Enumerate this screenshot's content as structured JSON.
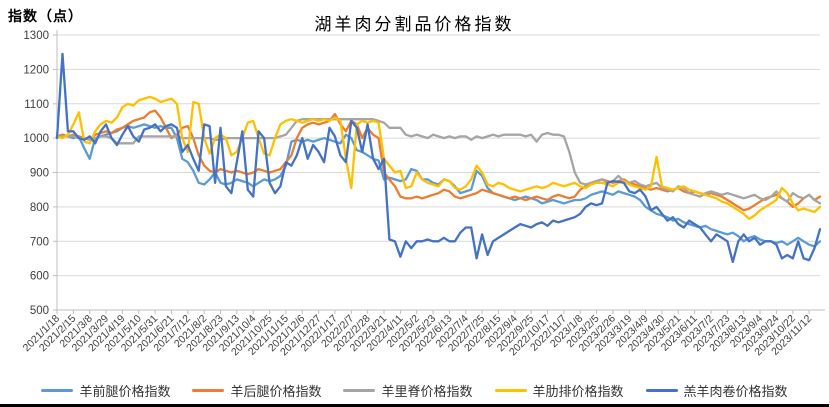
{
  "chart_data": {
    "type": "line",
    "title": "湖羊肉分割品价格指数",
    "ylabel": "指数（点）",
    "xlabel": "",
    "ylim": [
      500,
      1300
    ],
    "y_ticks": [
      500,
      600,
      700,
      800,
      900,
      1000,
      1100,
      1200,
      1300
    ],
    "grid": "horizontal",
    "legend_position": "bottom",
    "tick_every": 3,
    "x_tick_labels": [
      "2021/1/18",
      "2021/2/15",
      "2021/3/8",
      "2021/3/29",
      "2021/4/19",
      "2021/5/10",
      "2021/5/31",
      "2021/6/21",
      "2021/7/12",
      "2021/8/2",
      "2021/8/23",
      "2021/9/13",
      "2021/10/4",
      "2021/10/25",
      "2021/11/15",
      "2021/12/6",
      "2021/12/27",
      "2022/1/17",
      "2022/2/7",
      "2022/2/28",
      "2022/3/21",
      "2022/4/11",
      "2022/5/2",
      "2022/5/23",
      "2022/6/13",
      "2022/7/4",
      "2022/7/25",
      "2022/8/15",
      "2022/9/4",
      "2022/9/25",
      "2022/10/17",
      "2022/11/7",
      "2023/1/8",
      "2023/2/5",
      "2023/2/26",
      "2023/3/19",
      "2023/4/9",
      "2023/4/30",
      "2023/5/21",
      "2023/6/11",
      "2023/7/2",
      "2023/7/23",
      "2023/8/13",
      "2023/9/4",
      "2023/9/24",
      "2023/10/22",
      "2023/11/12"
    ],
    "series": [
      {
        "name": "羊前腿价格指数",
        "color": "#5B9BD5",
        "values": [
          1005,
          1010,
          1005,
          1000,
          1005,
          970,
          940,
          1000,
          1005,
          1010,
          1015,
          1020,
          1030,
          1035,
          1030,
          1035,
          1040,
          1035,
          1030,
          1035,
          1030,
          1030,
          1000,
          940,
          930,
          905,
          870,
          865,
          880,
          900,
          870,
          865,
          870,
          880,
          875,
          870,
          860,
          870,
          880,
          875,
          880,
          890,
          920,
          990,
          995,
          990,
          995,
          990,
          995,
          1000,
          995,
          990,
          985,
          1010,
          1000,
          965,
          960,
          950,
          940,
          935,
          880,
          885,
          880,
          875,
          880,
          910,
          905,
          880,
          880,
          870,
          865,
          880,
          875,
          860,
          840,
          845,
          850,
          905,
          890,
          855,
          840,
          835,
          830,
          825,
          820,
          825,
          830,
          825,
          820,
          810,
          815,
          820,
          815,
          810,
          815,
          820,
          820,
          825,
          835,
          840,
          845,
          840,
          835,
          845,
          840,
          835,
          830,
          820,
          800,
          790,
          780,
          775,
          770,
          760,
          765,
          755,
          750,
          745,
          740,
          745,
          735,
          730,
          725,
          720,
          725,
          715,
          700,
          710,
          715,
          705,
          700,
          700,
          695,
          700,
          690,
          700,
          710,
          700,
          690,
          685,
          700
        ]
      },
      {
        "name": "羊后腿价格指数",
        "color": "#ED7D31",
        "values": [
          1005,
          1010,
          1005,
          1010,
          1005,
          1000,
          995,
          1010,
          1015,
          1020,
          1015,
          1025,
          1030,
          1040,
          1050,
          1055,
          1060,
          1075,
          1080,
          1060,
          1030,
          1000,
          1010,
          1030,
          1035,
          1000,
          950,
          920,
          905,
          900,
          910,
          905,
          900,
          905,
          900,
          895,
          900,
          910,
          905,
          900,
          905,
          910,
          930,
          950,
          1000,
          1030,
          1040,
          1045,
          1040,
          1045,
          1050,
          1070,
          1040,
          1020,
          1050,
          1040,
          1000,
          1030,
          1010,
          1000,
          900,
          880,
          860,
          830,
          825,
          825,
          830,
          825,
          830,
          835,
          840,
          850,
          845,
          830,
          825,
          830,
          835,
          840,
          850,
          845,
          840,
          835,
          830,
          825,
          830,
          825,
          820,
          825,
          830,
          825,
          820,
          830,
          835,
          830,
          825,
          830,
          850,
          860,
          870,
          875,
          880,
          875,
          870,
          875,
          880,
          870,
          865,
          860,
          855,
          850,
          855,
          850,
          845,
          850,
          855,
          845,
          840,
          845,
          840,
          835,
          840,
          835,
          830,
          820,
          810,
          800,
          790,
          795,
          805,
          815,
          825,
          830,
          835,
          825,
          815,
          800,
          810,
          825,
          835,
          820,
          830
        ]
      },
      {
        "name": "羊里脊价格指数",
        "color": "#A5A5A5",
        "values": [
          1005,
          1005,
          1005,
          1005,
          1000,
          1000,
          995,
          1000,
          1005,
          1005,
          1000,
          985,
          985,
          985,
          985,
          1005,
          1005,
          1005,
          1005,
          1005,
          1005,
          1005,
          1005,
          1000,
          1000,
          1000,
          1000,
          1000,
          1000,
          995,
          995,
          1000,
          1000,
          1000,
          1000,
          1000,
          1000,
          1000,
          1000,
          1000,
          1000,
          1005,
          1010,
          1030,
          1050,
          1055,
          1055,
          1055,
          1055,
          1055,
          1055,
          1055,
          1055,
          1055,
          1055,
          1055,
          1055,
          1055,
          1055,
          1050,
          1045,
          1030,
          1030,
          1030,
          1010,
          1005,
          1010,
          1005,
          1000,
          1010,
          1005,
          1000,
          1005,
          1000,
          1005,
          1005,
          995,
          1005,
          1000,
          1005,
          1010,
          1005,
          1010,
          1010,
          1010,
          1010,
          1005,
          1010,
          990,
          1010,
          1015,
          1010,
          1010,
          1005,
          960,
          900,
          870,
          865,
          870,
          875,
          880,
          870,
          875,
          890,
          875,
          870,
          875,
          865,
          860,
          865,
          870,
          855,
          850,
          845,
          860,
          855,
          840,
          835,
          830,
          840,
          845,
          840,
          835,
          840,
          835,
          830,
          825,
          830,
          835,
          825,
          820,
          830,
          845,
          825,
          815,
          840,
          830,
          825,
          835,
          820,
          810
        ]
      },
      {
        "name": "羊肋排价格指数",
        "color": "#FFC000",
        "values": [
          1005,
          1000,
          1010,
          1040,
          1075,
          990,
          985,
          1020,
          1040,
          1050,
          1045,
          1060,
          1090,
          1100,
          1095,
          1110,
          1115,
          1120,
          1115,
          1105,
          1110,
          1115,
          1100,
          1000,
          960,
          1105,
          1100,
          1000,
          955,
          1000,
          1010,
          1000,
          950,
          960,
          1000,
          1045,
          1050,
          1000,
          955,
          950,
          1000,
          1040,
          1050,
          1055,
          1050,
          1045,
          1050,
          1055,
          1050,
          1055,
          1050,
          1060,
          1050,
          940,
          855,
          1040,
          1050,
          1045,
          1050,
          1045,
          940,
          920,
          900,
          905,
          855,
          860,
          900,
          880,
          870,
          865,
          860,
          880,
          875,
          855,
          850,
          860,
          880,
          920,
          900,
          865,
          860,
          870,
          865,
          855,
          850,
          845,
          850,
          855,
          860,
          855,
          860,
          870,
          865,
          860,
          865,
          870,
          860,
          855,
          865,
          870,
          870,
          865,
          860,
          870,
          875,
          865,
          860,
          855,
          850,
          860,
          945,
          860,
          855,
          850,
          855,
          860,
          850,
          845,
          840,
          835,
          830,
          825,
          815,
          810,
          800,
          790,
          780,
          765,
          775,
          790,
          800,
          810,
          820,
          855,
          840,
          810,
          790,
          795,
          790,
          785,
          800
        ]
      },
      {
        "name": "羔羊肉卷价格指数",
        "color": "#4472C4",
        "values": [
          1000,
          1245,
          1020,
          1020,
          1000,
          995,
          1005,
          985,
          1020,
          1040,
          1000,
          980,
          1010,
          1035,
          1005,
          990,
          1025,
          1030,
          1040,
          1020,
          1035,
          1040,
          1030,
          960,
          980,
          940,
          905,
          1040,
          1035,
          870,
          1030,
          860,
          840,
          930,
          1020,
          850,
          830,
          1020,
          1000,
          870,
          840,
          860,
          930,
          920,
          950,
          1000,
          940,
          980,
          960,
          930,
          1030,
          1005,
          950,
          930,
          1050,
          1030,
          960,
          1040,
          940,
          910,
          940,
          705,
          700,
          655,
          700,
          680,
          700,
          700,
          705,
          700,
          700,
          710,
          700,
          700,
          725,
          740,
          740,
          650,
          720,
          660,
          700,
          710,
          720,
          730,
          740,
          750,
          745,
          740,
          750,
          755,
          745,
          760,
          755,
          760,
          765,
          770,
          780,
          800,
          810,
          805,
          810,
          870,
          875,
          873,
          870,
          845,
          840,
          850,
          830,
          790,
          800,
          780,
          760,
          770,
          750,
          740,
          760,
          750,
          740,
          720,
          700,
          720,
          710,
          700,
          640,
          700,
          720,
          700,
          710,
          690,
          700,
          700,
          690,
          650,
          660,
          650,
          700,
          650,
          645,
          680,
          735
        ]
      }
    ]
  },
  "style": {
    "gridline_color": "#D9D9D9",
    "axis_color": "#BFBFBF",
    "tick_label_color": "#404040",
    "bottom_bar_color": "#000000"
  }
}
